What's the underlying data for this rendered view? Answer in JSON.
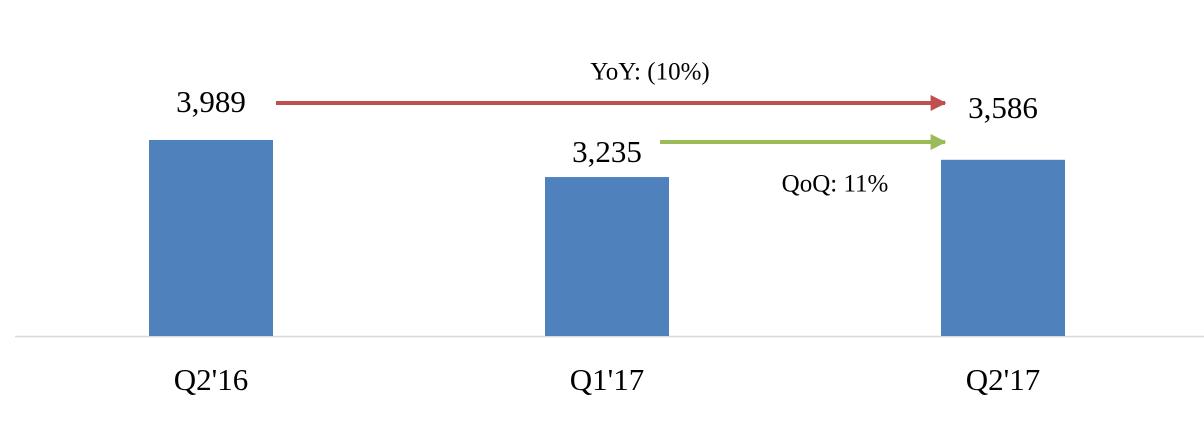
{
  "chart_data": {
    "type": "bar",
    "categories": [
      "Q2'16",
      "Q1'17",
      "Q2'17"
    ],
    "values": [
      3989,
      3235,
      3586
    ],
    "value_labels": [
      "3,989",
      "3,235",
      "3,586"
    ],
    "color": "#4f81bd",
    "annotations": [
      "YoY: (10%)",
      "QoQ: 11%"
    ]
  }
}
